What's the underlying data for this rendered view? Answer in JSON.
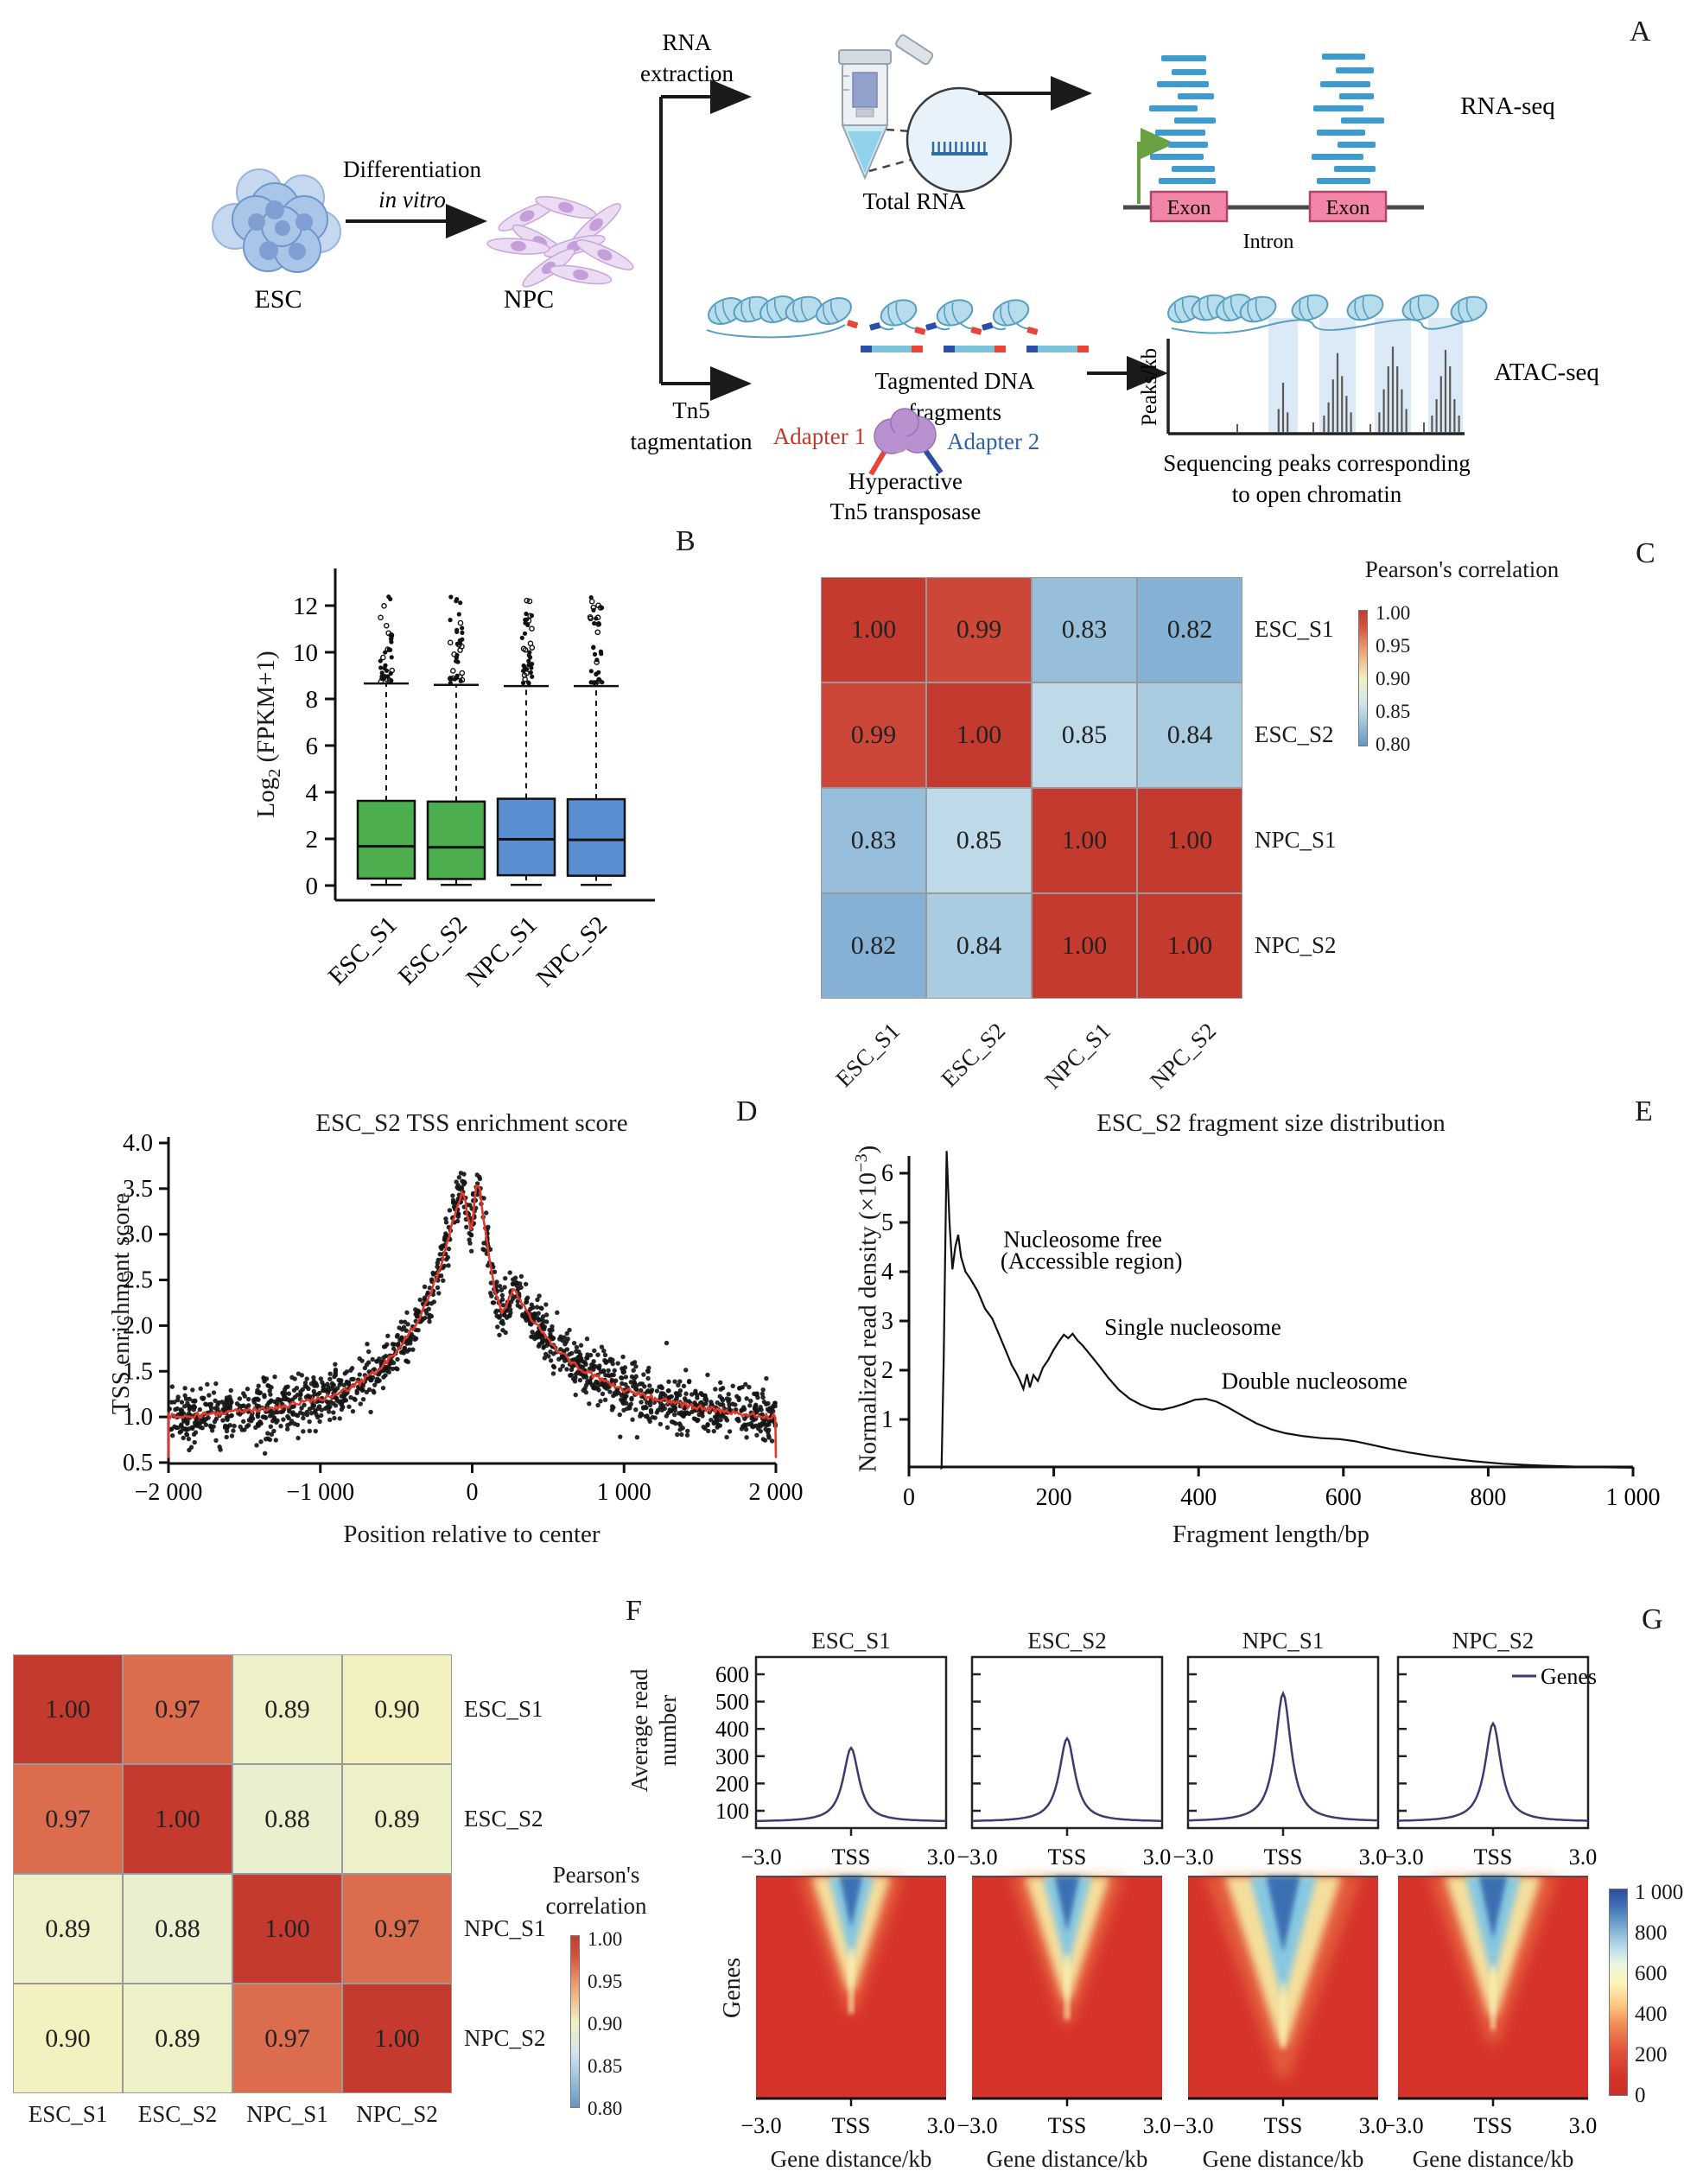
{
  "panels": {
    "A": "A",
    "B": "B",
    "C": "C",
    "D": "D",
    "E": "E",
    "F": "F",
    "G": "G"
  },
  "panelA": {
    "esc_label": "ESC",
    "npc_label": "NPC",
    "diff_line1": "Differentiation",
    "diff_line2": "in vitro",
    "rna_line1": "RNA",
    "rna_line2": "extraction",
    "total_rna": "Total RNA",
    "rna_seq": "RNA-seq",
    "exon1": "Exon",
    "exon2": "Exon",
    "intron": "Intron",
    "tn5_line1": "Tn5",
    "tn5_line2": "tagmentation",
    "tagmented_line1": "Tagmented DNA",
    "tagmented_line2": "fragments",
    "adapter1": "Adapter 1",
    "adapter2": "Adapter 2",
    "hyper_line1": "Hyperactive",
    "hyper_line2": "Tn5 transposase",
    "atac_seq": "ATAC-seq",
    "peaks_kb": "Peaks/kb",
    "seq_peaks_line1": "Sequencing peaks corresponding",
    "seq_peaks_line2": "to open chromatin",
    "colors": {
      "adapter1_text": "#c0392b",
      "adapter2_text": "#2e62a8",
      "read": "#3e9bcd",
      "exon_fill": "#f285a8",
      "exon_stroke": "#b4446a",
      "nucleosome": "#b7dcec",
      "nucleosome_stroke": "#569fc0",
      "tss_arrow": "#69a041",
      "highlight": "#dce9f7",
      "adapter_red": "#e8443a",
      "adapter_blue": "#2b4ea8",
      "tn5_blob": "#b792cf"
    },
    "peak_clusters": [
      [
        14,
        30,
        12
      ],
      [
        10,
        18,
        32,
        48,
        34,
        22,
        12
      ],
      [
        12,
        26,
        40,
        52,
        40,
        26,
        14
      ],
      [
        10,
        20,
        34,
        50,
        40,
        20,
        10
      ]
    ]
  },
  "chart_data": [
    {
      "panel": "B",
      "type": "box",
      "ylabel_main": "Log",
      "ylabel_sub": "2",
      "ylabel_rest": " (FPKM+1)",
      "categories": [
        "ESC_S1",
        "ESC_S2",
        "NPC_S1",
        "NPC_S2"
      ],
      "box_colors": [
        "#4cae4f",
        "#4cae4f",
        "#5b8ed0",
        "#5b8ed0"
      ],
      "yticks": [
        0,
        2,
        4,
        6,
        8,
        10,
        12
      ],
      "ylim": [
        0,
        13.5
      ],
      "boxes": [
        {
          "low": 0.03,
          "q1": 0.3,
          "median": 1.68,
          "q3": 3.63,
          "high": 8.66,
          "outlier_max": 12.45
        },
        {
          "low": 0.03,
          "q1": 0.28,
          "median": 1.64,
          "q3": 3.6,
          "high": 8.6,
          "outlier_max": 12.4
        },
        {
          "low": 0.03,
          "q1": 0.44,
          "median": 1.98,
          "q3": 3.72,
          "high": 8.55,
          "outlier_max": 12.6
        },
        {
          "low": 0.03,
          "q1": 0.42,
          "median": 1.96,
          "q3": 3.7,
          "high": 8.55,
          "outlier_max": 12.4
        }
      ]
    },
    {
      "panel": "C",
      "type": "heatmap",
      "title": "Pearson's correlation",
      "labels": [
        "ESC_S1",
        "ESC_S2",
        "NPC_S1",
        "NPC_S2"
      ],
      "matrix": [
        [
          1.0,
          0.99,
          0.83,
          0.82
        ],
        [
          0.99,
          1.0,
          0.85,
          0.84
        ],
        [
          0.83,
          0.85,
          1.0,
          1.0
        ],
        [
          0.82,
          0.84,
          1.0,
          1.0
        ]
      ],
      "colorbar_ticks": [
        "1.00",
        "0.95",
        "0.90",
        "0.85",
        "0.80"
      ],
      "domain": [
        0.8,
        1.0
      ]
    },
    {
      "panel": "D",
      "type": "scatter-line",
      "title": "ESC_S2 TSS enrichment score",
      "xlabel": "Position relative to center",
      "ylabel": "TSS enrichment score",
      "xticks": [
        {
          "v": -2000,
          "label": "−2 000"
        },
        {
          "v": -1000,
          "label": "−1 000"
        },
        {
          "v": 0,
          "label": "0"
        },
        {
          "v": 1000,
          "label": "1 000"
        },
        {
          "v": 2000,
          "label": "2 000"
        }
      ],
      "yticks": [
        0.5,
        1.0,
        1.5,
        2.0,
        2.5,
        3.0,
        3.5,
        4.0
      ],
      "xlim": [
        -2000,
        2000
      ],
      "ylim": [
        0.5,
        4.0
      ],
      "line_color": "#e03a2c",
      "point_color": "#151515",
      "curve": [
        [
          -2000,
          1.0
        ],
        [
          -1800,
          1.02
        ],
        [
          -1600,
          1.05
        ],
        [
          -1400,
          1.08
        ],
        [
          -1200,
          1.13
        ],
        [
          -1000,
          1.2
        ],
        [
          -900,
          1.25
        ],
        [
          -800,
          1.32
        ],
        [
          -700,
          1.42
        ],
        [
          -600,
          1.55
        ],
        [
          -500,
          1.72
        ],
        [
          -400,
          1.95
        ],
        [
          -350,
          2.08
        ],
        [
          -300,
          2.25
        ],
        [
          -250,
          2.45
        ],
        [
          -200,
          2.7
        ],
        [
          -150,
          3.0
        ],
        [
          -100,
          3.3
        ],
        [
          -70,
          3.45
        ],
        [
          -50,
          3.4
        ],
        [
          -30,
          3.18
        ],
        [
          -10,
          3.05
        ],
        [
          0,
          3.1
        ],
        [
          10,
          3.3
        ],
        [
          30,
          3.55
        ],
        [
          50,
          3.5
        ],
        [
          80,
          3.1
        ],
        [
          120,
          2.65
        ],
        [
          160,
          2.3
        ],
        [
          200,
          2.15
        ],
        [
          240,
          2.3
        ],
        [
          280,
          2.4
        ],
        [
          320,
          2.25
        ],
        [
          380,
          2.1
        ],
        [
          450,
          1.95
        ],
        [
          550,
          1.75
        ],
        [
          650,
          1.6
        ],
        [
          800,
          1.45
        ],
        [
          1000,
          1.3
        ],
        [
          1200,
          1.2
        ],
        [
          1400,
          1.13
        ],
        [
          1600,
          1.08
        ],
        [
          1800,
          1.03
        ],
        [
          2000,
          1.0
        ]
      ]
    },
    {
      "panel": "E",
      "type": "line",
      "title": "ESC_S2 fragment size distribution",
      "xlabel": "Fragment length/bp",
      "ylabel_main": "Normalized read density (×10",
      "ylabel_sup": "−3",
      "ylabel_close": ")",
      "xticks": [
        {
          "v": 0,
          "label": "0"
        },
        {
          "v": 200,
          "label": "200"
        },
        {
          "v": 400,
          "label": "400"
        },
        {
          "v": 600,
          "label": "600"
        },
        {
          "v": 800,
          "label": "800"
        },
        {
          "v": 1000,
          "label": "1 000"
        }
      ],
      "yticks": [
        1,
        2,
        3,
        4,
        5,
        6
      ],
      "annotations": [
        {
          "text": "Nucleosome free",
          "x": 240,
          "y": 4.5
        },
        {
          "text": "(Accessible region)",
          "x": 252,
          "y": 4.06
        },
        {
          "text": "Single nucleosome",
          "x": 392,
          "y": 2.72
        },
        {
          "text": "Double nucleosome",
          "x": 560,
          "y": 1.62
        }
      ],
      "curve": [
        [
          45,
          0
        ],
        [
          48,
          2.2
        ],
        [
          52,
          6.45
        ],
        [
          56,
          5.0
        ],
        [
          60,
          4.05
        ],
        [
          64,
          4.5
        ],
        [
          68,
          4.75
        ],
        [
          72,
          4.3
        ],
        [
          78,
          4.0
        ],
        [
          85,
          3.85
        ],
        [
          95,
          3.6
        ],
        [
          105,
          3.25
        ],
        [
          115,
          3.05
        ],
        [
          125,
          2.7
        ],
        [
          135,
          2.35
        ],
        [
          142,
          2.1
        ],
        [
          148,
          1.95
        ],
        [
          153,
          1.8
        ],
        [
          158,
          1.62
        ],
        [
          163,
          1.92
        ],
        [
          167,
          1.65
        ],
        [
          172,
          1.9
        ],
        [
          178,
          1.78
        ],
        [
          185,
          2.05
        ],
        [
          192,
          2.2
        ],
        [
          200,
          2.42
        ],
        [
          208,
          2.6
        ],
        [
          214,
          2.72
        ],
        [
          220,
          2.65
        ],
        [
          226,
          2.74
        ],
        [
          233,
          2.6
        ],
        [
          240,
          2.5
        ],
        [
          250,
          2.32
        ],
        [
          262,
          2.1
        ],
        [
          275,
          1.85
        ],
        [
          290,
          1.6
        ],
        [
          305,
          1.42
        ],
        [
          320,
          1.3
        ],
        [
          335,
          1.22
        ],
        [
          350,
          1.2
        ],
        [
          365,
          1.25
        ],
        [
          380,
          1.32
        ],
        [
          395,
          1.4
        ],
        [
          410,
          1.42
        ],
        [
          425,
          1.36
        ],
        [
          440,
          1.25
        ],
        [
          460,
          1.08
        ],
        [
          480,
          0.92
        ],
        [
          500,
          0.8
        ],
        [
          520,
          0.72
        ],
        [
          545,
          0.66
        ],
        [
          570,
          0.62
        ],
        [
          595,
          0.6
        ],
        [
          615,
          0.56
        ],
        [
          640,
          0.48
        ],
        [
          665,
          0.4
        ],
        [
          690,
          0.33
        ],
        [
          720,
          0.26
        ],
        [
          750,
          0.2
        ],
        [
          780,
          0.15
        ],
        [
          820,
          0.1
        ],
        [
          860,
          0.07
        ],
        [
          900,
          0.05
        ],
        [
          950,
          0.03
        ],
        [
          1000,
          0.02
        ]
      ]
    },
    {
      "panel": "F",
      "type": "heatmap",
      "title_line1": "Pearson's",
      "title_line2": "correlation",
      "labels": [
        "ESC_S1",
        "ESC_S2",
        "NPC_S1",
        "NPC_S2"
      ],
      "matrix": [
        [
          1.0,
          0.97,
          0.89,
          0.9
        ],
        [
          0.97,
          1.0,
          0.88,
          0.89
        ],
        [
          0.89,
          0.88,
          1.0,
          0.97
        ],
        [
          0.9,
          0.89,
          0.97,
          1.0
        ]
      ],
      "colorbar_ticks": [
        "1.00",
        "0.95",
        "0.90",
        "0.85",
        "0.80"
      ],
      "domain": [
        0.8,
        1.0
      ]
    },
    {
      "panel": "G",
      "type": "profile-heatmap",
      "titles": [
        "ESC_S1",
        "ESC_S2",
        "NPC_S1",
        "NPC_S2"
      ],
      "profile_ylabel_line1": "Average read",
      "profile_ylabel_line2": "number",
      "profile_yticks": [
        100,
        200,
        300,
        400,
        500,
        600
      ],
      "xticks": [
        "−3.0",
        "TSS",
        "3.0"
      ],
      "xlabel": "Gene distance/kb",
      "legend_label": "Genes",
      "genes_label": "Genes",
      "line_color": "#3b3b70",
      "baseline": 60,
      "peaks": [
        330,
        365,
        530,
        420
      ],
      "peak_width_kb": 0.3,
      "heat_intensity": [
        0.88,
        0.95,
        1.3,
        1.08
      ],
      "colorbar_ticks": [
        "1 000",
        "800",
        "600",
        "400",
        "200",
        "0"
      ]
    }
  ]
}
